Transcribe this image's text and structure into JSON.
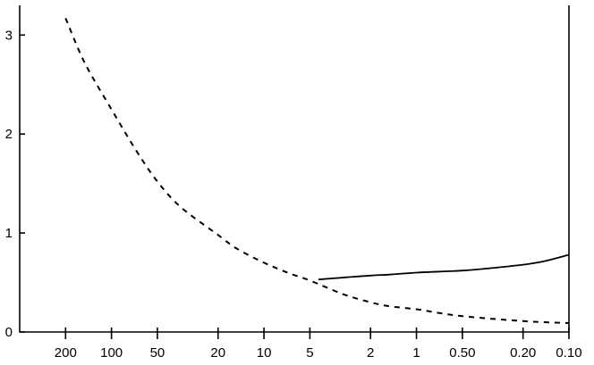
{
  "chart_data": {
    "type": "line",
    "title": "",
    "xlabel": "",
    "ylabel": "",
    "x_scale": "log-reversed",
    "x_ticks": [
      200,
      100,
      50,
      20,
      10,
      5,
      2,
      1,
      0.5,
      0.2,
      0.1
    ],
    "x_tick_labels": [
      "200",
      "100",
      "50",
      "20",
      "10",
      "5",
      "2",
      "1",
      "0.50",
      "0.20",
      "0.10"
    ],
    "xlim": [
      400,
      0.1
    ],
    "y_ticks": [
      0,
      1,
      2,
      3
    ],
    "y_tick_labels": [
      "0",
      "1",
      "2",
      "3"
    ],
    "ylim": [
      0,
      3.3
    ],
    "grid": false,
    "series": [
      {
        "style": "dashed",
        "x": [
          200,
          150,
          100,
          70,
          50,
          35,
          20,
          15,
          10,
          7,
          5,
          3,
          2,
          1.5,
          1,
          0.7,
          0.5,
          0.3,
          0.2,
          0.15,
          0.1
        ],
        "y": [
          3.17,
          2.72,
          2.25,
          1.85,
          1.52,
          1.26,
          0.98,
          0.84,
          0.7,
          0.6,
          0.52,
          0.38,
          0.3,
          0.26,
          0.23,
          0.19,
          0.16,
          0.13,
          0.11,
          0.1,
          0.09
        ]
      },
      {
        "style": "solid",
        "x": [
          4.4,
          3,
          2,
          1.5,
          1,
          0.7,
          0.5,
          0.35,
          0.2,
          0.15,
          0.1
        ],
        "y": [
          0.53,
          0.55,
          0.57,
          0.58,
          0.6,
          0.61,
          0.62,
          0.64,
          0.68,
          0.71,
          0.78
        ]
      }
    ]
  }
}
